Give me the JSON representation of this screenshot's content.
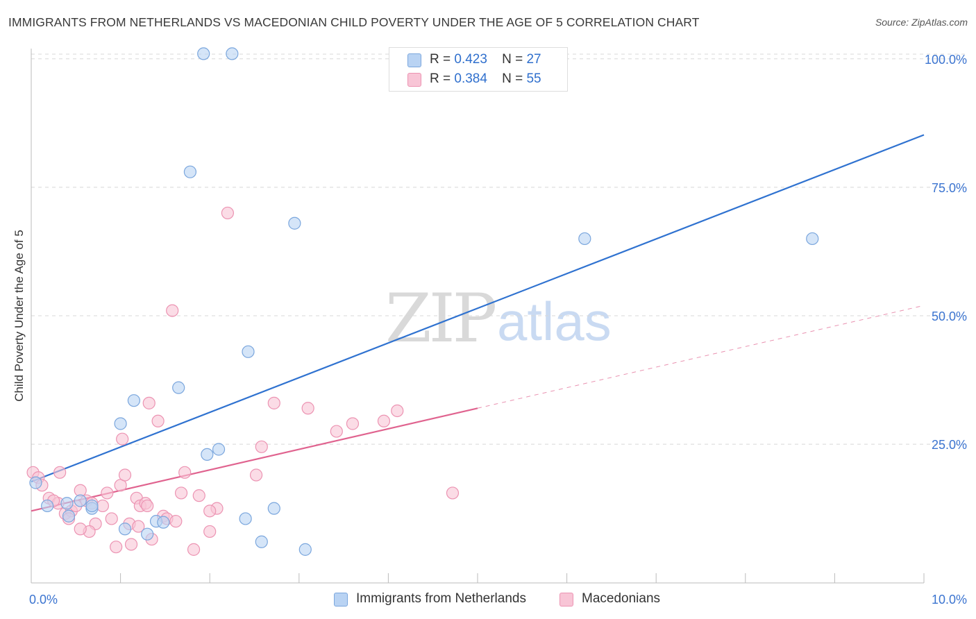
{
  "title": "IMMIGRANTS FROM NETHERLANDS VS MACEDONIAN CHILD POVERTY UNDER THE AGE OF 5 CORRELATION CHART",
  "source": "Source: ZipAtlas.com",
  "watermark": {
    "zip": "ZIP",
    "atlas": "atlas"
  },
  "legend_top": [
    {
      "r_label": "R =",
      "r_value": "0.423",
      "n_label": "N =",
      "n_value": "27"
    },
    {
      "r_label": "R =",
      "r_value": "0.384",
      "n_label": "N =",
      "n_value": "55"
    }
  ],
  "legend_bottom": [
    "Immigrants from Netherlands",
    "Macedonians"
  ],
  "colors": {
    "blue_fill": "#b9d3f3",
    "blue_stroke": "#7aa6dd",
    "blue_line": "#2f72d0",
    "pink_fill": "#f8c5d6",
    "pink_stroke": "#ec93b2",
    "pink_line": "#e0638f",
    "tick_label": "#3b74d0",
    "grid": "#d8d8d8"
  },
  "chart_data": {
    "type": "scatter",
    "title": "IMMIGRANTS FROM NETHERLANDS VS MACEDONIAN CHILD POVERTY UNDER THE AGE OF 5 CORRELATION CHART",
    "xlabel": "",
    "ylabel": "Child Poverty Under the Age of 5",
    "xlim": [
      0,
      10
    ],
    "ylim": [
      -2,
      102
    ],
    "x_tick_labels": [
      {
        "value": 0,
        "label": "0.0%"
      },
      {
        "value": 10,
        "label": "10.0%"
      }
    ],
    "y_tick_labels": [
      {
        "value": 25,
        "label": "25.0%"
      },
      {
        "value": 50,
        "label": "50.0%"
      },
      {
        "value": 75,
        "label": "75.0%"
      },
      {
        "value": 100,
        "label": "100.0%"
      }
    ],
    "grid": true,
    "legend_position": "bottom",
    "series": [
      {
        "name": "Immigrants from Netherlands",
        "color": "#b9d3f3",
        "points": [
          [
            0.05,
            17.5
          ],
          [
            0.18,
            13.0
          ],
          [
            0.42,
            11.0
          ],
          [
            0.68,
            12.5
          ],
          [
            0.55,
            14.0
          ],
          [
            0.68,
            13.0
          ],
          [
            1.0,
            29.0
          ],
          [
            1.15,
            33.5
          ],
          [
            1.05,
            8.5
          ],
          [
            1.3,
            7.5
          ],
          [
            1.4,
            10.0
          ],
          [
            1.48,
            9.8
          ],
          [
            1.65,
            36.0
          ],
          [
            1.78,
            78.0
          ],
          [
            1.93,
            101.0
          ],
          [
            2.25,
            101.0
          ],
          [
            1.97,
            23.0
          ],
          [
            2.1,
            24.0
          ],
          [
            2.43,
            43.0
          ],
          [
            2.4,
            10.5
          ],
          [
            2.58,
            6.0
          ],
          [
            2.72,
            12.5
          ],
          [
            2.95,
            68.0
          ],
          [
            3.07,
            4.5
          ],
          [
            0.4,
            13.5
          ],
          [
            6.2,
            65.0
          ],
          [
            8.75,
            65.0
          ]
        ],
        "trend": {
          "x": [
            0.0,
            10.0
          ],
          "y": [
            17.7,
            85.2
          ]
        }
      },
      {
        "name": "Macedonians",
        "color": "#f8c5d6",
        "points": [
          [
            0.02,
            19.5
          ],
          [
            0.08,
            18.5
          ],
          [
            0.12,
            17.0
          ],
          [
            0.2,
            14.5
          ],
          [
            0.32,
            19.5
          ],
          [
            0.3,
            13.5
          ],
          [
            0.38,
            11.5
          ],
          [
            0.45,
            12.0
          ],
          [
            0.5,
            13.0
          ],
          [
            0.55,
            16.0
          ],
          [
            0.62,
            14.0
          ],
          [
            0.68,
            13.5
          ],
          [
            0.72,
            9.5
          ],
          [
            0.65,
            8.0
          ],
          [
            0.8,
            13.0
          ],
          [
            0.85,
            15.5
          ],
          [
            0.9,
            10.5
          ],
          [
            0.95,
            5.0
          ],
          [
            1.0,
            17.0
          ],
          [
            1.02,
            26.0
          ],
          [
            1.05,
            19.0
          ],
          [
            1.1,
            9.5
          ],
          [
            1.18,
            14.5
          ],
          [
            1.22,
            13.0
          ],
          [
            1.28,
            13.5
          ],
          [
            1.3,
            13.0
          ],
          [
            1.32,
            33.0
          ],
          [
            1.35,
            6.5
          ],
          [
            1.42,
            29.5
          ],
          [
            1.48,
            11.0
          ],
          [
            1.52,
            10.5
          ],
          [
            1.58,
            51.0
          ],
          [
            1.62,
            10.0
          ],
          [
            1.68,
            15.5
          ],
          [
            1.72,
            19.5
          ],
          [
            1.82,
            4.5
          ],
          [
            1.88,
            15.0
          ],
          [
            2.0,
            8.0
          ],
          [
            2.08,
            12.5
          ],
          [
            2.2,
            70.0
          ],
          [
            2.52,
            19.0
          ],
          [
            2.58,
            24.5
          ],
          [
            2.72,
            33.0
          ],
          [
            3.1,
            32.0
          ],
          [
            3.42,
            27.5
          ],
          [
            3.6,
            29.0
          ],
          [
            3.95,
            29.5
          ],
          [
            4.1,
            31.5
          ],
          [
            4.72,
            15.5
          ],
          [
            0.55,
            8.5
          ],
          [
            1.12,
            5.5
          ],
          [
            2.0,
            12.0
          ],
          [
            0.42,
            10.5
          ],
          [
            1.2,
            9.0
          ],
          [
            0.25,
            14.0
          ]
        ],
        "trend": {
          "x": [
            0.0,
            5.0
          ],
          "y": [
            12.0,
            32.0
          ]
        },
        "trend_extension": {
          "x": [
            5.0,
            10.0
          ],
          "y": [
            32.0,
            52.0
          ]
        }
      }
    ]
  }
}
